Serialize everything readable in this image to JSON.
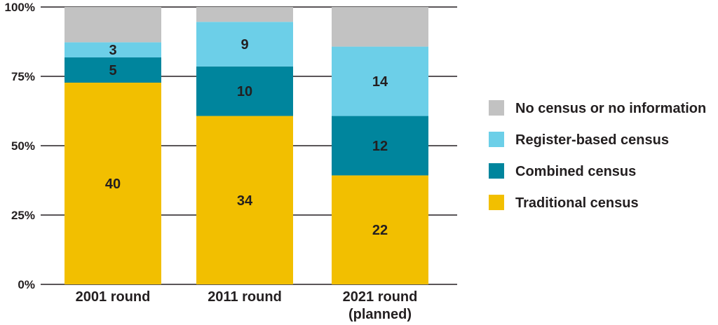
{
  "chart_data": {
    "type": "bar",
    "stacked": "percent",
    "categories": [
      [
        "2001 round"
      ],
      [
        "2011 round"
      ],
      [
        "2021 round",
        "(planned)"
      ]
    ],
    "series": [
      {
        "name": "Traditional census",
        "color": "#f2bf00",
        "values": [
          40,
          34,
          22
        ],
        "labels": [
          "40",
          "34",
          "22"
        ]
      },
      {
        "name": "Combined census",
        "color": "#00859d",
        "values": [
          5,
          10,
          12
        ],
        "labels": [
          "5",
          "10",
          "12"
        ]
      },
      {
        "name": "Register-based census",
        "color": "#6ccfe8",
        "values": [
          3,
          9,
          14
        ],
        "labels": [
          "3",
          "9",
          "14"
        ]
      },
      {
        "name": "No census or no information",
        "color": "#c2c2c2",
        "values": [
          7,
          3,
          8
        ],
        "labels": [
          "",
          "",
          ""
        ]
      }
    ],
    "yticks": [
      "0%",
      "25%",
      "50%",
      "75%",
      "100%"
    ],
    "ylim": [
      0,
      100
    ],
    "grid": true,
    "legend": "right",
    "legend_order": [
      "No census or no information",
      "Register-based census",
      "Combined census",
      "Traditional census"
    ]
  }
}
